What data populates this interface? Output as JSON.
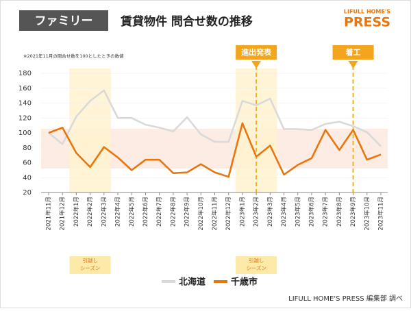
{
  "header": {
    "badge": "ファミリー",
    "title": "賃貸物件 問合せ数の推移",
    "logo_top": "LIFULL HOME'S",
    "logo_main": "PRESS"
  },
  "source": "LIFULL HOME'S PRESS 編集部 調べ",
  "chart_data": {
    "type": "line",
    "note": "※2021年11月の問合せ数を100としたときの数値",
    "categories": [
      "2021年11月",
      "2021年12月",
      "2022年1月",
      "2022年2月",
      "2022年3月",
      "2022年4月",
      "2022年5月",
      "2022年6月",
      "2022年7月",
      "2022年8月",
      "2022年9月",
      "2022年10月",
      "2022年11月",
      "2022年12月",
      "2023年1月",
      "2023年2月",
      "2023年3月",
      "2023年4月",
      "2023年5月",
      "2023年6月",
      "2023年7月",
      "2023年8月",
      "2023年9月",
      "2023年10月",
      "2023年11月"
    ],
    "series": [
      {
        "name": "北海道",
        "color": "#d9d9d9",
        "values": [
          100,
          85,
          122,
          143,
          157,
          120,
          120,
          111,
          107,
          102,
          121,
          98,
          88,
          88,
          143,
          137,
          146,
          105,
          105,
          104,
          112,
          115,
          109,
          101,
          82
        ]
      },
      {
        "name": "千歳市",
        "color": "#e8760f",
        "values": [
          100,
          107,
          73,
          54,
          81,
          67,
          50,
          64,
          64,
          46,
          47,
          58,
          47,
          41,
          113,
          68,
          83,
          44,
          57,
          66,
          104,
          77,
          104,
          64,
          71
        ]
      }
    ],
    "ylim": [
      20,
      180
    ],
    "yticks": [
      20,
      40,
      60,
      80,
      100,
      120,
      140,
      160,
      180
    ],
    "annotations": [
      {
        "text": "進出発表",
        "at": "2023年2月"
      },
      {
        "text": "着工",
        "at": "2023年9月"
      }
    ],
    "seasons": [
      {
        "lines": [
          "引越し",
          "シーズン"
        ],
        "from": "2022年1月",
        "to": "2022年3月"
      },
      {
        "lines": [
          "引越し",
          "シーズン"
        ],
        "from": "2023年1月",
        "to": "2023年3月"
      }
    ]
  }
}
